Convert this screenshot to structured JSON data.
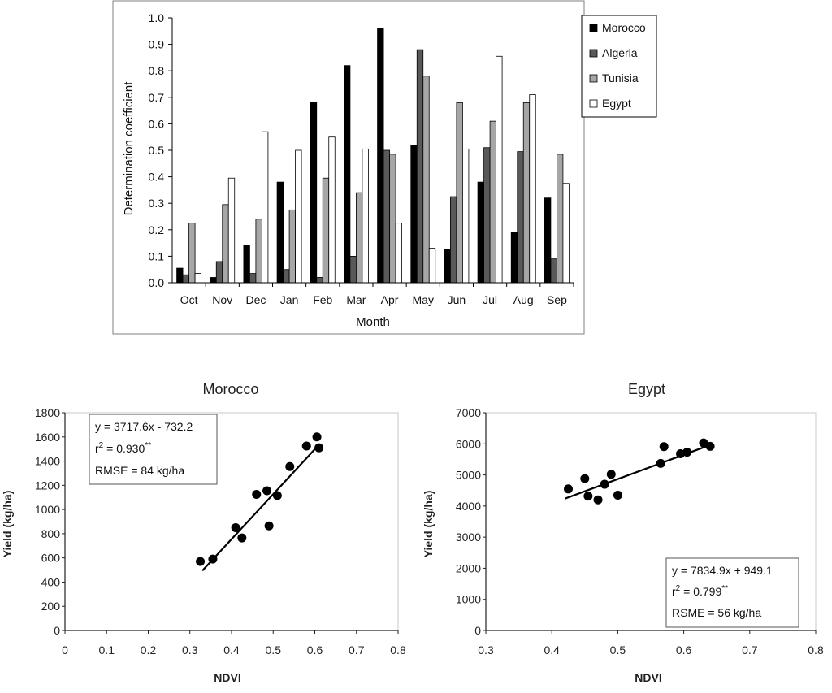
{
  "chart_data": [
    {
      "type": "bar",
      "categories": [
        "Oct",
        "Nov",
        "Dec",
        "Jan",
        "Feb",
        "Mar",
        "Apr",
        "May",
        "Jun",
        "Jul",
        "Aug",
        "Sep"
      ],
      "series": [
        {
          "name": "Morocco",
          "color": "#000000",
          "values": [
            0.055,
            0.02,
            0.14,
            0.38,
            0.68,
            0.82,
            0.96,
            0.52,
            0.125,
            0.38,
            0.19,
            0.32
          ]
        },
        {
          "name": "Algeria",
          "color": "#595959",
          "values": [
            0.03,
            0.08,
            0.035,
            0.05,
            0.02,
            0.1,
            0.5,
            0.88,
            0.325,
            0.51,
            0.495,
            0.09
          ]
        },
        {
          "name": "Tunisia",
          "color": "#a6a6a6",
          "values": [
            0.225,
            0.295,
            0.24,
            0.275,
            0.395,
            0.34,
            0.485,
            0.78,
            0.68,
            0.61,
            0.68,
            0.485
          ]
        },
        {
          "name": "Egypt",
          "color": "#ffffff",
          "values": [
            0.035,
            0.395,
            0.57,
            0.5,
            0.55,
            0.505,
            0.225,
            0.13,
            0.505,
            0.855,
            0.71,
            0.375
          ]
        }
      ],
      "title": "",
      "xlabel": "Month",
      "ylabel": "Determination coefficient",
      "ylim": [
        0,
        1.0
      ],
      "yticks": [
        "0.0",
        "0.1",
        "0.2",
        "0.3",
        "0.4",
        "0.5",
        "0.6",
        "0.7",
        "0.8",
        "0.9",
        "1.0"
      ],
      "legend_position": "right"
    },
    {
      "type": "scatter",
      "title": "Morocco",
      "xlabel": "NDVI",
      "ylabel": "Yield (kg/ha)",
      "xlim": [
        0,
        0.8
      ],
      "ylim": [
        0,
        1800
      ],
      "xticks": [
        "0",
        "0.1",
        "0.2",
        "0.3",
        "0.4",
        "0.5",
        "0.6",
        "0.7",
        "0.8"
      ],
      "yticks": [
        "0",
        "200",
        "400",
        "600",
        "800",
        "1000",
        "1200",
        "1400",
        "1600",
        "1800"
      ],
      "points": [
        {
          "x": 0.325,
          "y": 570
        },
        {
          "x": 0.355,
          "y": 590
        },
        {
          "x": 0.41,
          "y": 850
        },
        {
          "x": 0.425,
          "y": 765
        },
        {
          "x": 0.46,
          "y": 1125
        },
        {
          "x": 0.485,
          "y": 1155
        },
        {
          "x": 0.49,
          "y": 865
        },
        {
          "x": 0.51,
          "y": 1115
        },
        {
          "x": 0.54,
          "y": 1355
        },
        {
          "x": 0.58,
          "y": 1525
        },
        {
          "x": 0.605,
          "y": 1600
        },
        {
          "x": 0.61,
          "y": 1510
        }
      ],
      "fit": {
        "slope": 3717.6,
        "intercept": -732.2,
        "x_range": [
          0.33,
          0.61
        ]
      },
      "annotation": {
        "line1": "y = 3717.6x - 732.2",
        "line2_prefix": "r",
        "line2_sup": "2",
        "line2_rest": " = 0.930",
        "line2_stars": "**",
        "line3": "RMSE = 84 kg/ha",
        "position": "top-left"
      }
    },
    {
      "type": "scatter",
      "title": "Egypt",
      "xlabel": "NDVI",
      "ylabel": "Yield (kg/ha)",
      "xlim": [
        0.3,
        0.8
      ],
      "ylim": [
        0,
        7000
      ],
      "xticks": [
        "0.3",
        "0.4",
        "0.5",
        "0.6",
        "0.7",
        "0.8"
      ],
      "yticks": [
        "0",
        "1000",
        "2000",
        "3000",
        "4000",
        "5000",
        "6000",
        "7000"
      ],
      "points": [
        {
          "x": 0.425,
          "y": 4550
        },
        {
          "x": 0.45,
          "y": 4880
        },
        {
          "x": 0.455,
          "y": 4320
        },
        {
          "x": 0.47,
          "y": 4200
        },
        {
          "x": 0.48,
          "y": 4700
        },
        {
          "x": 0.49,
          "y": 5020
        },
        {
          "x": 0.5,
          "y": 4350
        },
        {
          "x": 0.565,
          "y": 5370
        },
        {
          "x": 0.57,
          "y": 5910
        },
        {
          "x": 0.595,
          "y": 5680
        },
        {
          "x": 0.605,
          "y": 5730
        },
        {
          "x": 0.63,
          "y": 6030
        },
        {
          "x": 0.64,
          "y": 5920
        }
      ],
      "fit": {
        "slope": 7834.9,
        "intercept": 949.1,
        "x_range": [
          0.42,
          0.64
        ]
      },
      "annotation": {
        "line1": "y = 7834.9x + 949.1",
        "line2_prefix": "r",
        "line2_sup": "2",
        "line2_rest": " = 0.799",
        "line2_stars": "**",
        "line3": "RSME = 56 kg/ha",
        "position": "bottom-right"
      }
    }
  ]
}
